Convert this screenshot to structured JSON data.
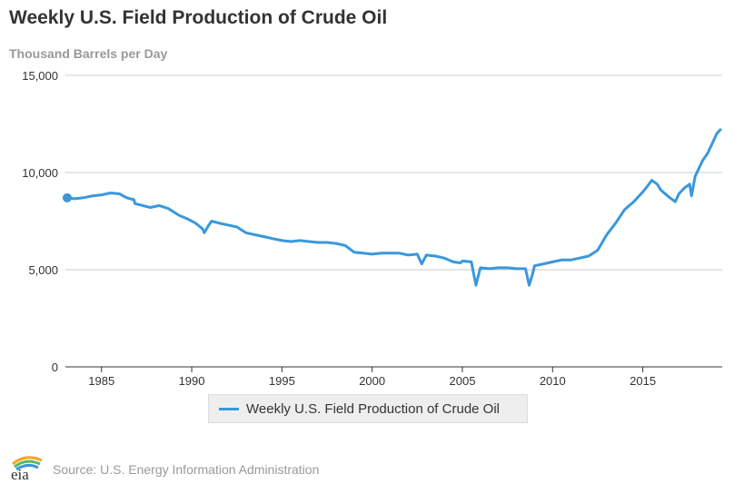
{
  "title": "Weekly U.S. Field Production of Crude Oil",
  "subtitle": "Thousand Barrels per Day",
  "legend_label": "Weekly U.S. Field Production of Crude Oil",
  "source": "Source: U.S. Energy Information Administration",
  "logo_text": "eia",
  "colors": {
    "series": "#3a98db",
    "grid": "#cccccc",
    "axis": "#333333",
    "text": "#333333"
  },
  "chart_data": {
    "type": "line",
    "title": "Weekly U.S. Field Production of Crude Oil",
    "ylabel": "Thousand Barrels per Day",
    "xlabel": "",
    "xlim": [
      1983.0,
      2019.4
    ],
    "ylim": [
      0,
      15000
    ],
    "x_ticks": [
      1985,
      1990,
      1995,
      2000,
      2005,
      2010,
      2015
    ],
    "x_tick_labels": [
      "1985",
      "1990",
      "1995",
      "2000",
      "2005",
      "2010",
      "2015"
    ],
    "y_ticks": [
      0,
      5000,
      10000,
      15000
    ],
    "y_tick_labels": [
      "0",
      "5,000",
      "10,000",
      "15,000"
    ],
    "grid": true,
    "legend_position": "bottom",
    "series": [
      {
        "name": "Weekly U.S. Field Production of Crude Oil",
        "color": "#3a98db",
        "x": [
          1983.1,
          1983.5,
          1984.0,
          1984.5,
          1985.0,
          1985.5,
          1986.0,
          1986.4,
          1986.8,
          1986.85,
          1987.3,
          1987.7,
          1988.2,
          1988.7,
          1989.3,
          1989.8,
          1990.2,
          1990.6,
          1990.7,
          1990.95,
          1991.1,
          1991.5,
          1992.0,
          1992.5,
          1993.0,
          1993.5,
          1994.0,
          1994.5,
          1995.0,
          1995.5,
          1996.0,
          1996.5,
          1997.0,
          1997.5,
          1998.0,
          1998.5,
          1999.0,
          1999.5,
          2000.0,
          2000.5,
          2001.0,
          2001.5,
          2002.0,
          2002.5,
          2002.75,
          2003.0,
          2003.5,
          2004.0,
          2004.5,
          2004.9,
          2005.0,
          2005.5,
          2005.75,
          2006.0,
          2006.5,
          2007.0,
          2007.5,
          2008.0,
          2008.5,
          2008.7,
          2008.9,
          2009.0,
          2009.5,
          2010.0,
          2010.5,
          2011.0,
          2011.5,
          2012.0,
          2012.5,
          2013.0,
          2013.5,
          2014.0,
          2014.5,
          2015.0,
          2015.3,
          2015.5,
          2015.8,
          2016.0,
          2016.5,
          2016.8,
          2017.0,
          2017.3,
          2017.6,
          2017.7,
          2017.9,
          2018.0,
          2018.3,
          2018.6,
          2018.9,
          2019.1,
          2019.3
        ],
        "values": [
          8700,
          8650,
          8700,
          8800,
          8850,
          8950,
          8900,
          8700,
          8600,
          8400,
          8300,
          8200,
          8300,
          8150,
          7800,
          7600,
          7400,
          7100,
          6900,
          7300,
          7500,
          7400,
          7300,
          7200,
          6900,
          6800,
          6700,
          6600,
          6500,
          6450,
          6500,
          6450,
          6400,
          6400,
          6350,
          6250,
          5900,
          5850,
          5800,
          5850,
          5850,
          5850,
          5750,
          5800,
          5300,
          5750,
          5700,
          5600,
          5400,
          5350,
          5450,
          5400,
          4200,
          5100,
          5050,
          5100,
          5100,
          5050,
          5050,
          4200,
          4800,
          5200,
          5300,
          5400,
          5500,
          5500,
          5600,
          5700,
          6000,
          6800,
          7400,
          8100,
          8500,
          9000,
          9350,
          9600,
          9400,
          9100,
          8700,
          8500,
          8900,
          9200,
          9400,
          8800,
          9800,
          10000,
          10600,
          11000,
          11600,
          12000,
          12200
        ]
      }
    ]
  }
}
